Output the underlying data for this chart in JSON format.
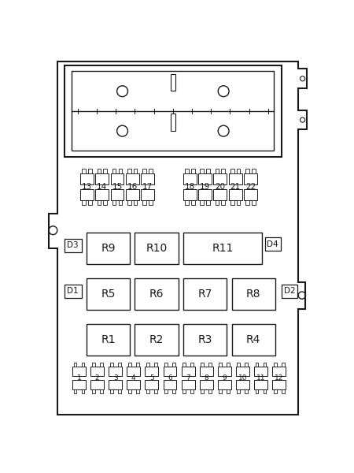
{
  "bg_color": "#ffffff",
  "line_color": "#1a1a1a",
  "fig_width": 4.5,
  "fig_height": 6.0,
  "fuses_bottom": [
    "1",
    "2",
    "3",
    "4",
    "5",
    "6",
    "7",
    "8",
    "9",
    "10",
    "11",
    "12"
  ],
  "fuses_top_left": [
    "13",
    "14",
    "15",
    "16",
    "17"
  ],
  "fuses_top_right": [
    "18",
    "19",
    "20",
    "21",
    "22"
  ],
  "relay_row1": [
    "R1",
    "R2",
    "R3",
    "R4"
  ],
  "relay_row2": [
    "R5",
    "R6",
    "R7",
    "R8"
  ],
  "relay_row3": [
    "R9",
    "R10",
    "R11"
  ],
  "diodes_left": [
    "D3",
    "D1"
  ],
  "diodes_right": [
    "D4",
    "D2"
  ]
}
